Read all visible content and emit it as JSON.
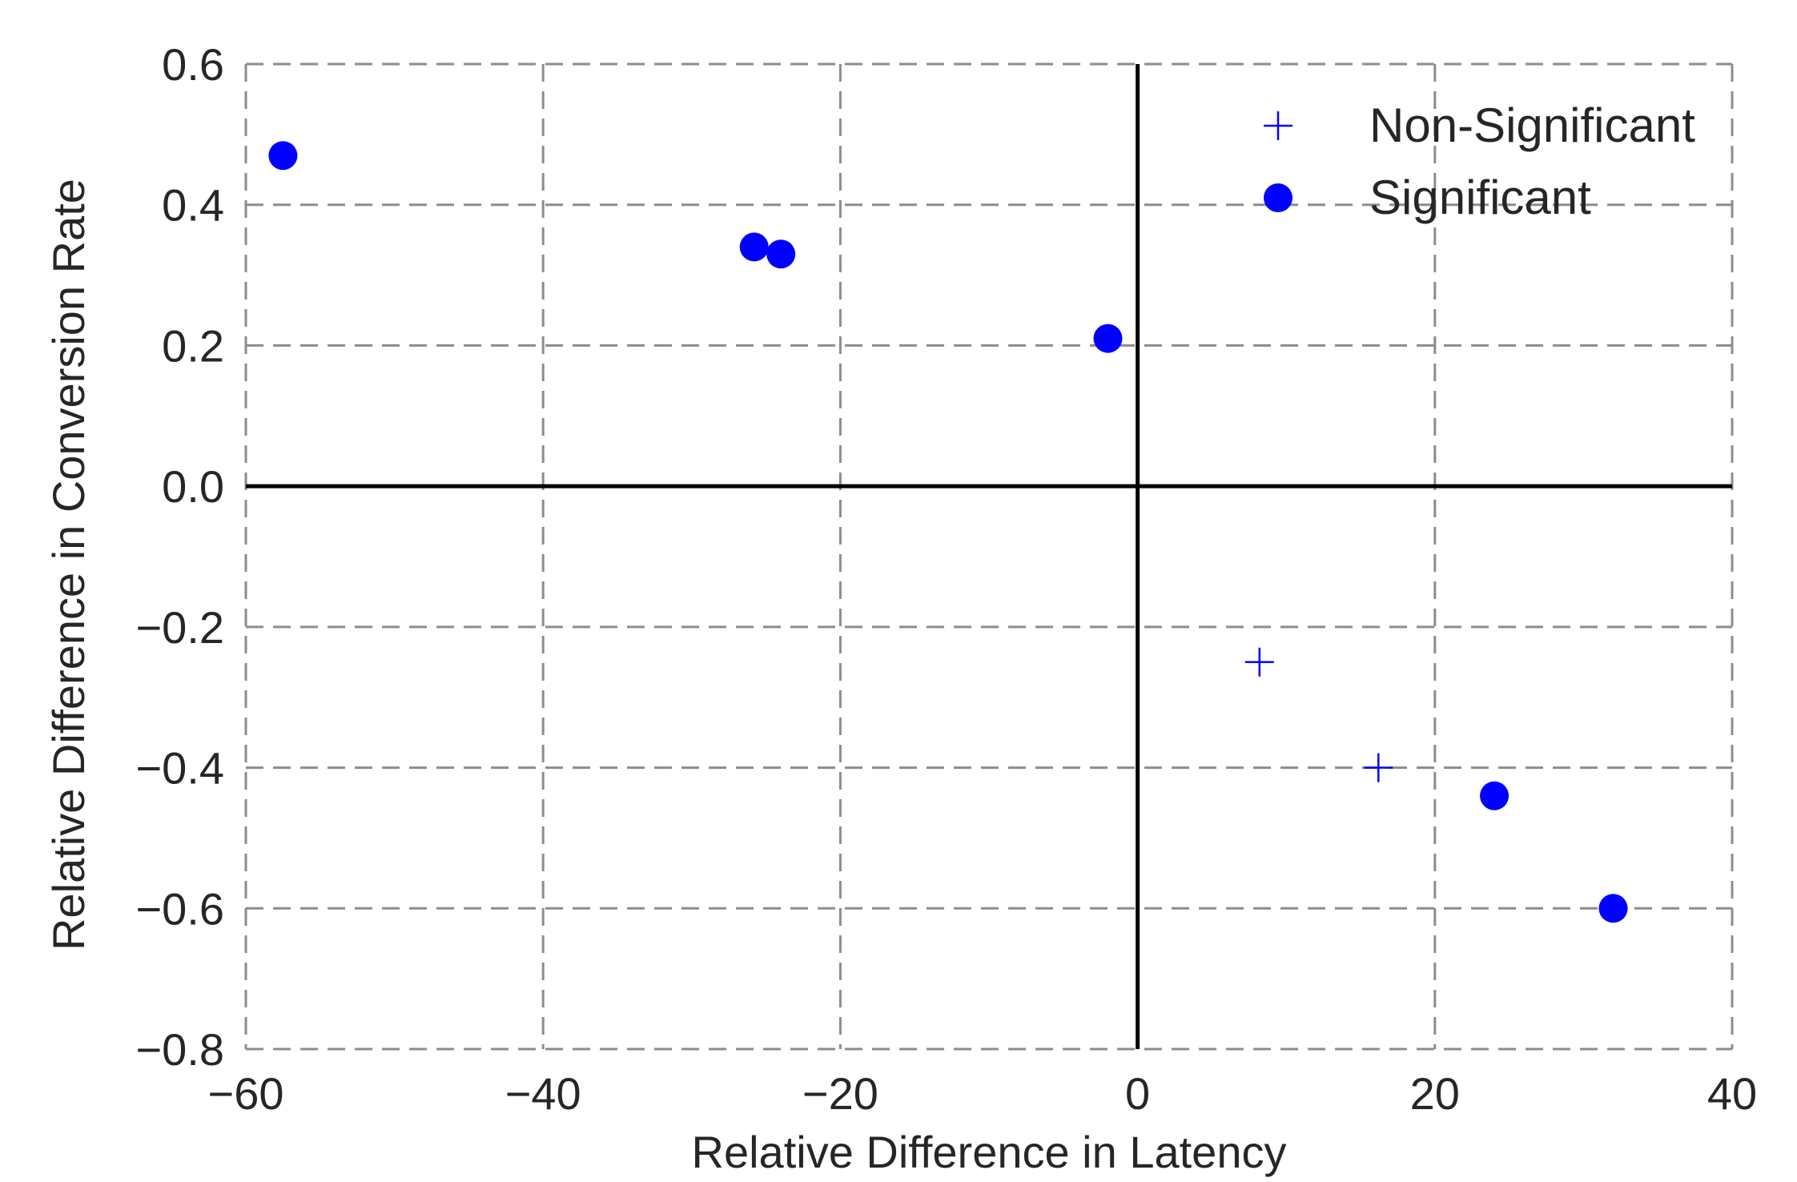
{
  "chart_data": {
    "type": "scatter",
    "title": "",
    "xlabel": "Relative Difference in Latency",
    "ylabel": "Relative Difference in Conversion Rate",
    "xlim": [
      -60,
      40
    ],
    "ylim": [
      -0.8,
      0.6
    ],
    "xticks": [
      -60,
      -40,
      -20,
      0,
      20,
      40
    ],
    "yticks": [
      -0.8,
      -0.6,
      -0.4,
      -0.2,
      0.0,
      0.2,
      0.4,
      0.6
    ],
    "xtick_labels": [
      "−60",
      "−40",
      "−20",
      "0",
      "20",
      "40"
    ],
    "ytick_labels": [
      "−0.8",
      "−0.6",
      "−0.4",
      "−0.2",
      "0.0",
      "0.2",
      "0.4",
      "0.6"
    ],
    "grid": true,
    "grid_style": "dashed",
    "reference_lines": {
      "x": 0,
      "y": 0
    },
    "legend_position": "top-right",
    "series": [
      {
        "name": "Non-Significant",
        "marker": "plus",
        "color": "#0000ff",
        "points": [
          {
            "x": 8.2,
            "y": -0.25
          },
          {
            "x": 16.2,
            "y": -0.4
          }
        ]
      },
      {
        "name": "Significant",
        "marker": "circle",
        "color": "#0000ff",
        "points": [
          {
            "x": -57.5,
            "y": 0.47
          },
          {
            "x": -25.8,
            "y": 0.34
          },
          {
            "x": -24.0,
            "y": 0.33
          },
          {
            "x": -2.0,
            "y": 0.21
          },
          {
            "x": 24.0,
            "y": -0.44
          },
          {
            "x": 32.0,
            "y": -0.6
          }
        ]
      }
    ]
  }
}
